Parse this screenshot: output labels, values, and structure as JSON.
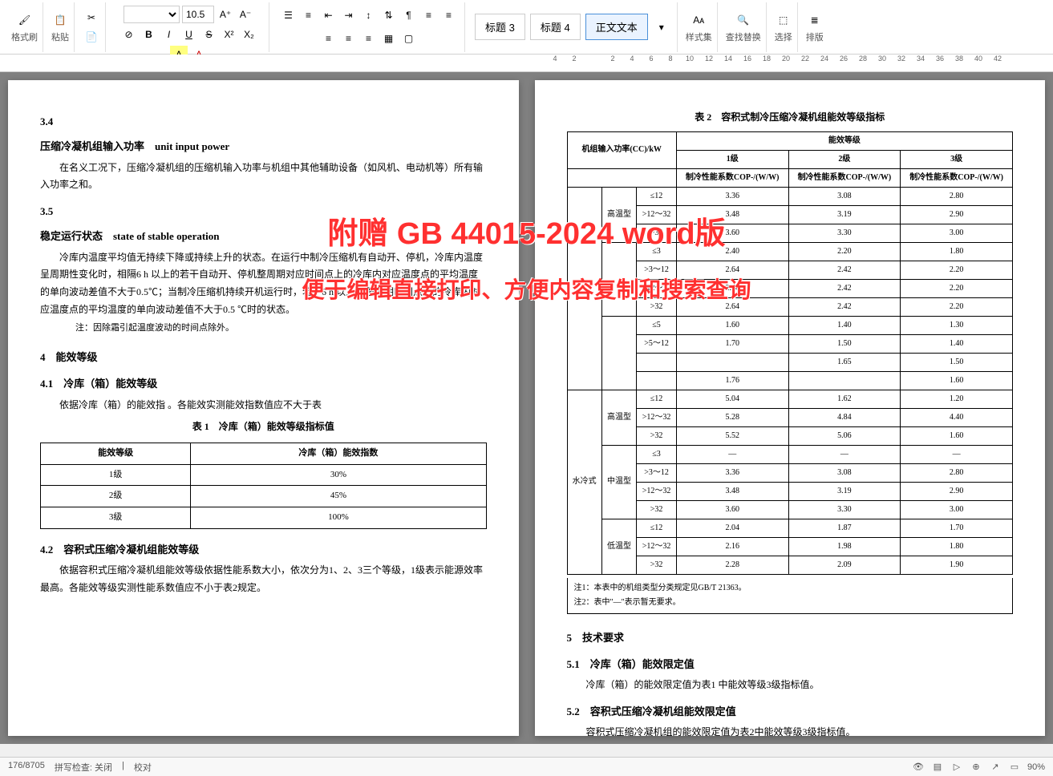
{
  "toolbar": {
    "format_brush": "格式刷",
    "paste": "粘贴",
    "font_size": "10.5",
    "bold": "B",
    "italic": "I",
    "underline": "U",
    "strike": "S",
    "heading3": "标题 3",
    "heading4": "标题 4",
    "body_text": "正文文本",
    "styles": "样式集",
    "find_replace": "查找替换",
    "select": "选择",
    "arrange": "排版"
  },
  "ruler_marks": [
    "4",
    "2",
    "",
    "2",
    "4",
    "6",
    "8",
    "10",
    "12",
    "14",
    "16",
    "18",
    "20",
    "22",
    "24",
    "26",
    "28",
    "30",
    "32",
    "34",
    "36",
    "38",
    "40",
    "42"
  ],
  "page1": {
    "s34": "3.4",
    "s34_title": "压缩冷凝机组输入功率　unit input power",
    "s34_body": "在名义工况下，压缩冷凝机组的压缩机输入功率与机组中其他辅助设备（如风机、电动机等）所有输入功率之和。",
    "s35": "3.5",
    "s35_title": "稳定运行状态　state of stable operation",
    "s35_body": "冷库内温度平均值无持续下降或持续上升的状态。在运行中制冷压缩机有自动开、停机，冷库内温度呈周期性变化时，相隔6 h 以上的若干自动开、停机整周期对应时间点上的冷库内对应温度点的平均温度的单向波动差值不大于0.5℃；当制冷压缩机持续开机运行时，若干6 h 以上的整周期时间点上的冷库内对应温度点的平均温度的单向波动差值不大于0.5 ℃时的状态。",
    "s35_note": "注：因除霜引起温度波动的时间点除外。",
    "s4": "4　能效等级",
    "s41": "4.1　冷库（箱）能效等级",
    "s41_body": "依据冷库（箱）的能效指                                                            。各能效实测能效指数值应不大于表",
    "t1_title": "表 1　冷库（箱）能效等级指标值",
    "t1_headers": [
      "能效等级",
      "冷库（箱）能效指数"
    ],
    "t1_rows": [
      [
        "1级",
        "30%"
      ],
      [
        "2级",
        "45%"
      ],
      [
        "3级",
        "100%"
      ]
    ],
    "s42": "4.2　容积式压缩冷凝机组能效等级",
    "s42_body": "依据容积式压缩冷凝机组能效等级依据性能系数大小，依次分为1、2、3三个等级，1级表示能源效率最高。各能效等级实测性能系数值应不小于表2规定。"
  },
  "page2": {
    "t2_title": "表 2　容积式制冷压缩冷凝机组能效等级指标",
    "t2_h1": "机组输入功率(CC)/kW",
    "t2_h2": "能效等级",
    "t2_h3": [
      "1级",
      "2级",
      "3级"
    ],
    "t2_h4": "制冷性能系数COP-/(W/W)",
    "t2_groups": [
      {
        "label": "",
        "sub": [
          {
            "label": "高温型",
            "rows": [
              [
                "≤12",
                "3.36",
                "3.08",
                "2.80"
              ],
              [
                ">12～32",
                "3.48",
                "3.19",
                "2.90"
              ],
              [
                ">32",
                "3.60",
                "3.30",
                "3.00"
              ]
            ]
          },
          {
            "label": "",
            "rows": [
              [
                "≤3",
                "2.40",
                "2.20",
                "1.80"
              ],
              [
                ">3～12",
                "2.64",
                "2.42",
                "2.20"
              ],
              [
                ">12～32",
                "2.64",
                "2.42",
                "2.20"
              ],
              [
                ">32",
                "2.64",
                "2.42",
                "2.20"
              ]
            ]
          },
          {
            "label": "",
            "rows": [
              [
                "≤5",
                "1.60",
                "1.40",
                "1.30"
              ],
              [
                ">5～12",
                "1.70",
                "1.50",
                "1.40"
              ],
              [
                "",
                "",
                "1.65",
                "1.50"
              ],
              [
                "",
                "1.76",
                "",
                "1.60"
              ]
            ]
          }
        ]
      },
      {
        "label": "水冷式",
        "sub": [
          {
            "label": "高温型",
            "rows": [
              [
                "≤12",
                "5.04",
                "1.62",
                "1.20"
              ],
              [
                ">12～32",
                "5.28",
                "4.84",
                "4.40"
              ],
              [
                ">32",
                "5.52",
                "5.06",
                "1.60"
              ]
            ]
          },
          {
            "label": "中温型",
            "rows": [
              [
                "≤3",
                "—",
                "—",
                "—"
              ],
              [
                ">3～12",
                "3.36",
                "3.08",
                "2.80"
              ],
              [
                ">12～32",
                "3.48",
                "3.19",
                "2.90"
              ],
              [
                ">32",
                "3.60",
                "3.30",
                "3.00"
              ]
            ]
          },
          {
            "label": "低温型",
            "rows": [
              [
                "≤12",
                "2.04",
                "1.87",
                "1.70"
              ],
              [
                ">12～32",
                "2.16",
                "1.98",
                "1.80"
              ],
              [
                ">32",
                "2.28",
                "2.09",
                "1.90"
              ]
            ]
          }
        ]
      }
    ],
    "t2_note1": "注1：本表中的机组类型分类规定见GB/T 21363。",
    "t2_note2": "注2：表中\"—\"表示暂无要求。",
    "s5": "5　技术要求",
    "s51": "5.1　冷库（箱）能效限定值",
    "s51_body": "冷库（箱）的能效限定值为表1 中能效等级3级指标值。",
    "s52": "5.2　容积式压缩冷凝机组能效限定值",
    "s52_body": "容积式压缩冷凝机组的能效限定值为表2中能效等级3级指标值。"
  },
  "watermark1": "附赠 GB 44015-2024 word版",
  "watermark2": "便于编辑直接打印、方便内容复制和搜索查询",
  "status": {
    "page": "176/8705",
    "spell": "拼写检查: 关闭",
    "proof": "校对",
    "zoom": "90%"
  }
}
